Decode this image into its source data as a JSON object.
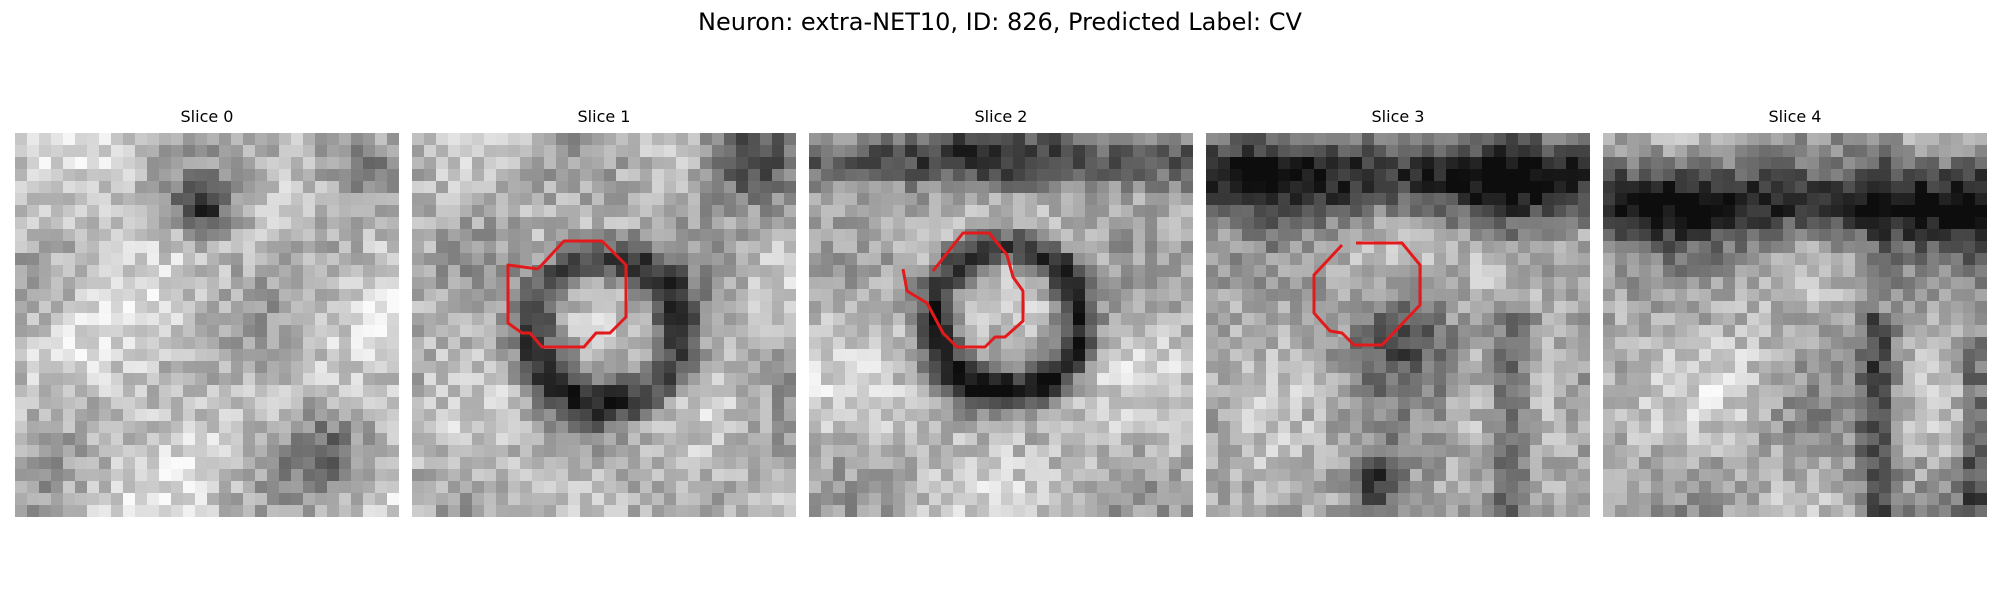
{
  "figure": {
    "title": "Neuron: extra-NET10, ID: 826, Predicted Label: CV"
  },
  "panels": [
    {
      "title": "Slice 0",
      "has_outline": false
    },
    {
      "title": "Slice 1",
      "has_outline": true
    },
    {
      "title": "Slice 2",
      "has_outline": true
    },
    {
      "title": "Slice 3",
      "has_outline": true
    },
    {
      "title": "Slice 4",
      "has_outline": false
    }
  ],
  "colors": {
    "outline": "#e31a1c",
    "background": "#ffffff"
  }
}
